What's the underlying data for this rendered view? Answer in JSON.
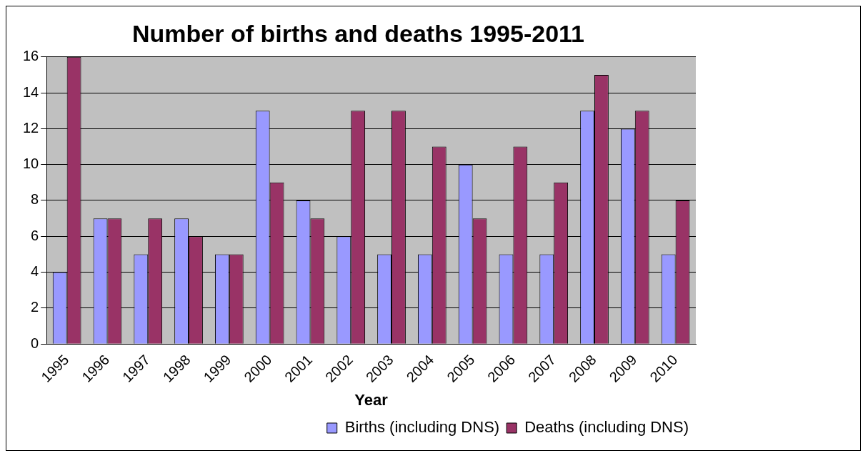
{
  "chart_data": {
    "type": "bar",
    "title": "Number of births and deaths 1995-2011",
    "xlabel": "Year",
    "categories": [
      "1995",
      "1996",
      "1997",
      "1998",
      "1999",
      "2000",
      "2001",
      "2002",
      "2003",
      "2004",
      "2005",
      "2006",
      "2007",
      "2008",
      "2009",
      "2010"
    ],
    "series": [
      {
        "name": "Births (including DNS)",
        "color": "#9999ff",
        "values": [
          4,
          7,
          5,
          7,
          5,
          13,
          8,
          6,
          5,
          5,
          10,
          5,
          5,
          13,
          12,
          5
        ]
      },
      {
        "name": "Deaths (including DNS)",
        "color": "#993366",
        "values": [
          16,
          7,
          7,
          6,
          5,
          9,
          7,
          13,
          13,
          11,
          7,
          11,
          9,
          15,
          13,
          8
        ]
      }
    ],
    "ylim": [
      0,
      16
    ],
    "yticks": [
      0,
      2,
      4,
      6,
      8,
      10,
      12,
      14,
      16
    ],
    "grid": "y",
    "legend": "bottom right"
  }
}
